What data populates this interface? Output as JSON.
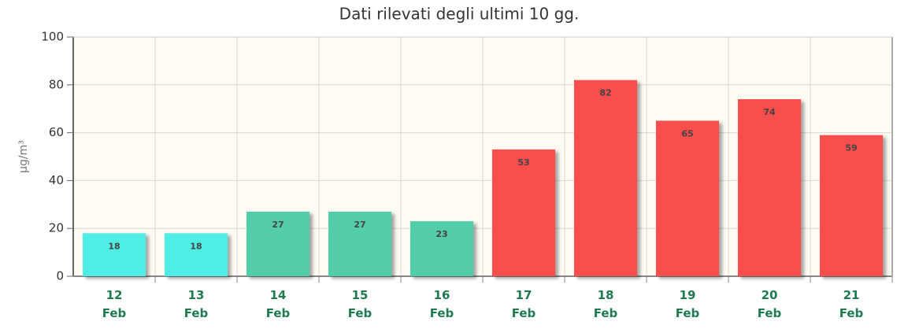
{
  "chart_data": {
    "type": "bar",
    "title": "Dati rilevati degli ultimi 10 gg.",
    "y_label": "µg/m³",
    "categories": [
      "12 Feb",
      "13 Feb",
      "14 Feb",
      "15 Feb",
      "16 Feb",
      "17 Feb",
      "18 Feb",
      "19 Feb",
      "20 Feb",
      "21 Feb"
    ],
    "values": [
      18,
      18,
      27,
      27,
      23,
      53,
      82,
      65,
      74,
      59
    ],
    "colors": [
      "#50ede6",
      "#50ede6",
      "#52cca9",
      "#52cca9",
      "#52cca9",
      "#fa4d4d",
      "#fa4d4d",
      "#fa4d4d",
      "#fa4d4d",
      "#fa4d4d"
    ],
    "ylim": [
      0,
      100
    ],
    "yticks": [
      0,
      20,
      40,
      60,
      80,
      100
    ],
    "grid": true
  }
}
